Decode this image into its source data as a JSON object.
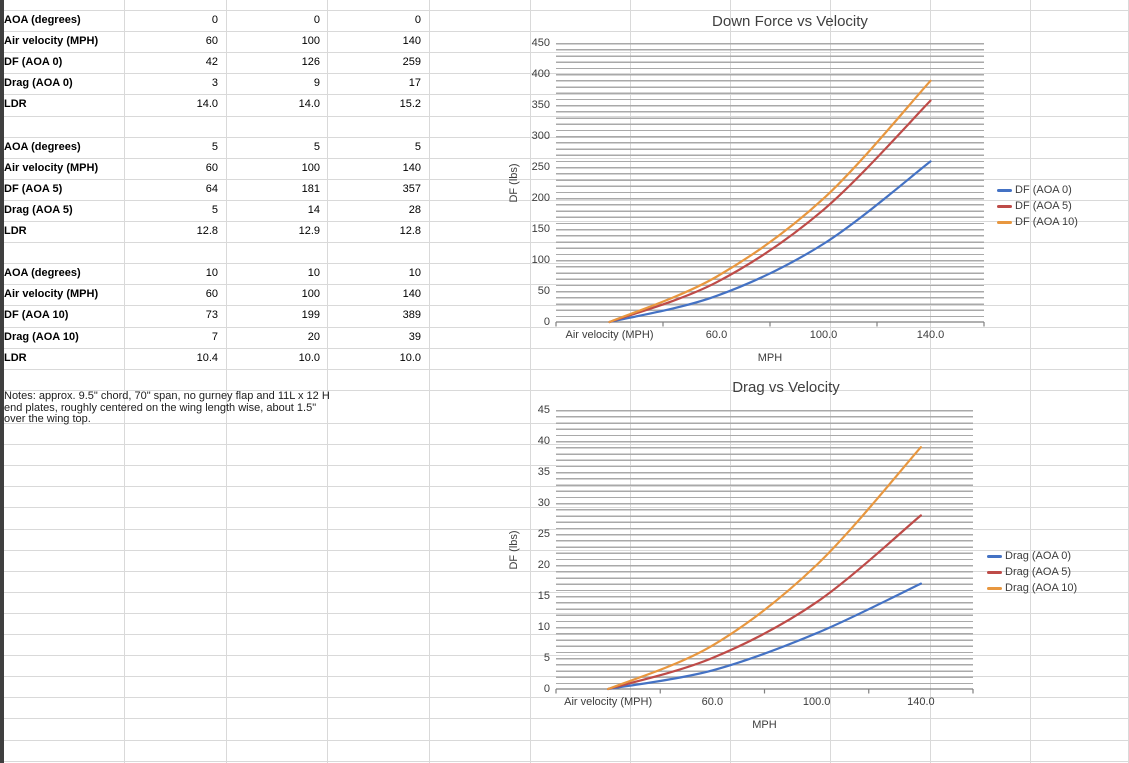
{
  "sheet": {
    "table": {
      "rows": [
        {
          "label": "AOA (degrees)",
          "values": [
            "0",
            "0",
            "0"
          ]
        },
        {
          "label": "Air velocity (MPH)",
          "values": [
            "60",
            "100",
            "140"
          ]
        },
        {
          "label": "DF (AOA 0)",
          "values": [
            "42",
            "126",
            "259"
          ]
        },
        {
          "label": "Drag (AOA 0)",
          "values": [
            "3",
            "9",
            "17"
          ]
        },
        {
          "label": "LDR",
          "values": [
            "14.0",
            "14.0",
            "15.2"
          ]
        },
        {
          "label": "",
          "values": [
            "",
            "",
            ""
          ]
        },
        {
          "label": "AOA (degrees)",
          "values": [
            "5",
            "5",
            "5"
          ]
        },
        {
          "label": "Air velocity (MPH)",
          "values": [
            "60",
            "100",
            "140"
          ]
        },
        {
          "label": "DF (AOA 5)",
          "values": [
            "64",
            "181",
            "357"
          ]
        },
        {
          "label": "Drag (AOA 5)",
          "values": [
            "5",
            "14",
            "28"
          ]
        },
        {
          "label": "LDR",
          "values": [
            "12.8",
            "12.9",
            "12.8"
          ]
        },
        {
          "label": "",
          "values": [
            "",
            "",
            ""
          ]
        },
        {
          "label": "AOA (degrees)",
          "values": [
            "10",
            "10",
            "10"
          ]
        },
        {
          "label": "Air velocity (MPH)",
          "values": [
            "60",
            "100",
            "140"
          ]
        },
        {
          "label": "DF (AOA 10)",
          "values": [
            "73",
            "199",
            "389"
          ]
        },
        {
          "label": "Drag (AOA 10)",
          "values": [
            "7",
            "20",
            "39"
          ]
        },
        {
          "label": "LDR",
          "values": [
            "10.4",
            "10.0",
            "10.0"
          ]
        }
      ]
    },
    "notes": "Notes: approx. 9.5\" chord, 70\" span, no gurney flap and 11L x 12 H end plates, roughly centered on the wing length wise, about 1.5\" over the wing top."
  },
  "chart_data": [
    {
      "type": "line",
      "smooth": true,
      "title": "Down Force vs Velocity",
      "categories": [
        "Air velocity (MPH)",
        "60.0",
        "100.0",
        "140.0"
      ],
      "series": [
        {
          "name": "DF (AOA 0)",
          "color": "#4472C4",
          "values": [
            0,
            42,
            126,
            259
          ]
        },
        {
          "name": "DF (AOA 5)",
          "color": "#BE4B48",
          "values": [
            0,
            64,
            181,
            357
          ]
        },
        {
          "name": "DF (AOA 10)",
          "color": "#E8973F",
          "values": [
            0,
            73,
            199,
            389
          ]
        }
      ],
      "xlabel": "MPH",
      "ylabel": "DF (lbs)",
      "ylim": [
        0,
        450
      ],
      "ytick_step": 50,
      "minor_gridline_step": 10,
      "legend_position": "right",
      "grid": "horizontal-minor"
    },
    {
      "type": "line",
      "smooth": true,
      "title": "Drag vs Velocity",
      "categories": [
        "Air velocity (MPH)",
        "60.0",
        "100.0",
        "140.0"
      ],
      "series": [
        {
          "name": "Drag (AOA 0)",
          "color": "#4472C4",
          "values": [
            0,
            3,
            9,
            17
          ]
        },
        {
          "name": "Drag (AOA 5)",
          "color": "#BE4B48",
          "values": [
            0,
            5,
            14,
            28
          ]
        },
        {
          "name": "Drag (AOA 10)",
          "color": "#E8973F",
          "values": [
            0,
            7,
            20,
            39
          ]
        }
      ],
      "xlabel": "MPH",
      "ylabel": "DF (lbs)",
      "ylim": [
        0,
        45
      ],
      "ytick_step": 5,
      "minor_gridline_step": 1,
      "legend_position": "right",
      "grid": "horizontal-minor"
    }
  ]
}
